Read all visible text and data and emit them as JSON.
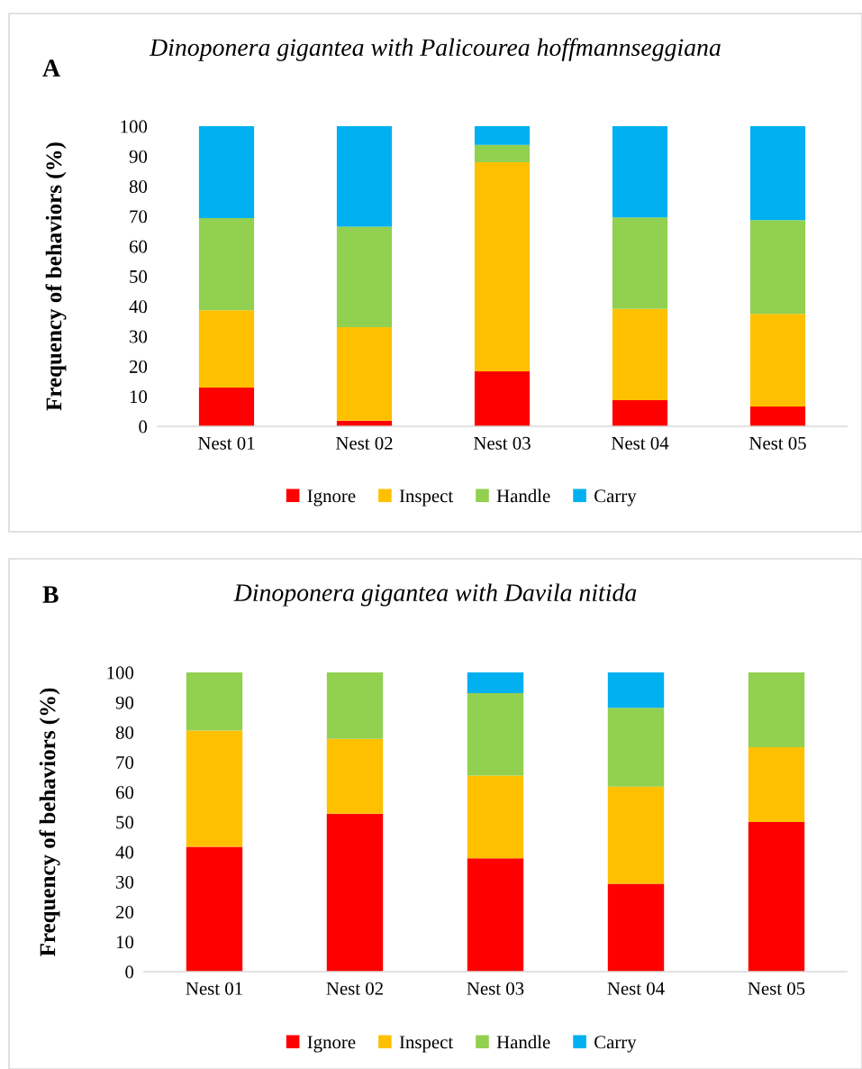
{
  "chart_data": [
    {
      "type": "bar",
      "stacked": true,
      "title": "Dinoponera gigantea with Palicourea hoffmannseggiana",
      "ylabel": "Frequency of behaviors (%)",
      "annotations": [
        "A"
      ],
      "categories": [
        "Nest 01",
        "Nest 02",
        "Nest 03",
        "Nest 04",
        "Nest 05"
      ],
      "series": [
        {
          "name": "Ignore",
          "color": "#ff0000",
          "values": [
            12.9,
            1.9,
            18.3,
            8.7,
            6.6
          ]
        },
        {
          "name": "Inspect",
          "color": "#ffc000",
          "values": [
            25.8,
            31.1,
            69.7,
            30.4,
            30.9
          ]
        },
        {
          "name": "Handle",
          "color": "#92d050",
          "values": [
            30.7,
            33.5,
            5.8,
            30.5,
            31.2
          ]
        },
        {
          "name": "Carry",
          "color": "#00b0f0",
          "values": [
            30.6,
            33.5,
            6.2,
            30.4,
            31.3
          ]
        }
      ],
      "ylim": [
        0,
        100
      ],
      "yticks": [
        0,
        10,
        20,
        30,
        40,
        50,
        60,
        70,
        80,
        90,
        100
      ],
      "grid": false,
      "legend": "bottom"
    },
    {
      "type": "bar",
      "stacked": true,
      "title": "Dinoponera gigantea with Davila nitida",
      "ylabel": "Frequency of behaviors (%)",
      "annotations": [
        "B"
      ],
      "categories": [
        "Nest 01",
        "Nest 02",
        "Nest 03",
        "Nest 04",
        "Nest 05"
      ],
      "series": [
        {
          "name": "Ignore",
          "color": "#ff0000",
          "values": [
            41.7,
            52.8,
            37.9,
            29.4,
            50.0
          ]
        },
        {
          "name": "Inspect",
          "color": "#ffc000",
          "values": [
            38.9,
            25.0,
            27.6,
            32.4,
            25.0
          ]
        },
        {
          "name": "Handle",
          "color": "#92d050",
          "values": [
            19.4,
            22.2,
            27.6,
            26.4,
            25.0
          ]
        },
        {
          "name": "Carry",
          "color": "#00b0f0",
          "values": [
            0,
            0,
            6.9,
            11.8,
            0
          ]
        }
      ],
      "ylim": [
        0,
        100
      ],
      "yticks": [
        0,
        10,
        20,
        30,
        40,
        50,
        60,
        70,
        80,
        90,
        100
      ],
      "grid": false,
      "legend": "bottom"
    }
  ]
}
